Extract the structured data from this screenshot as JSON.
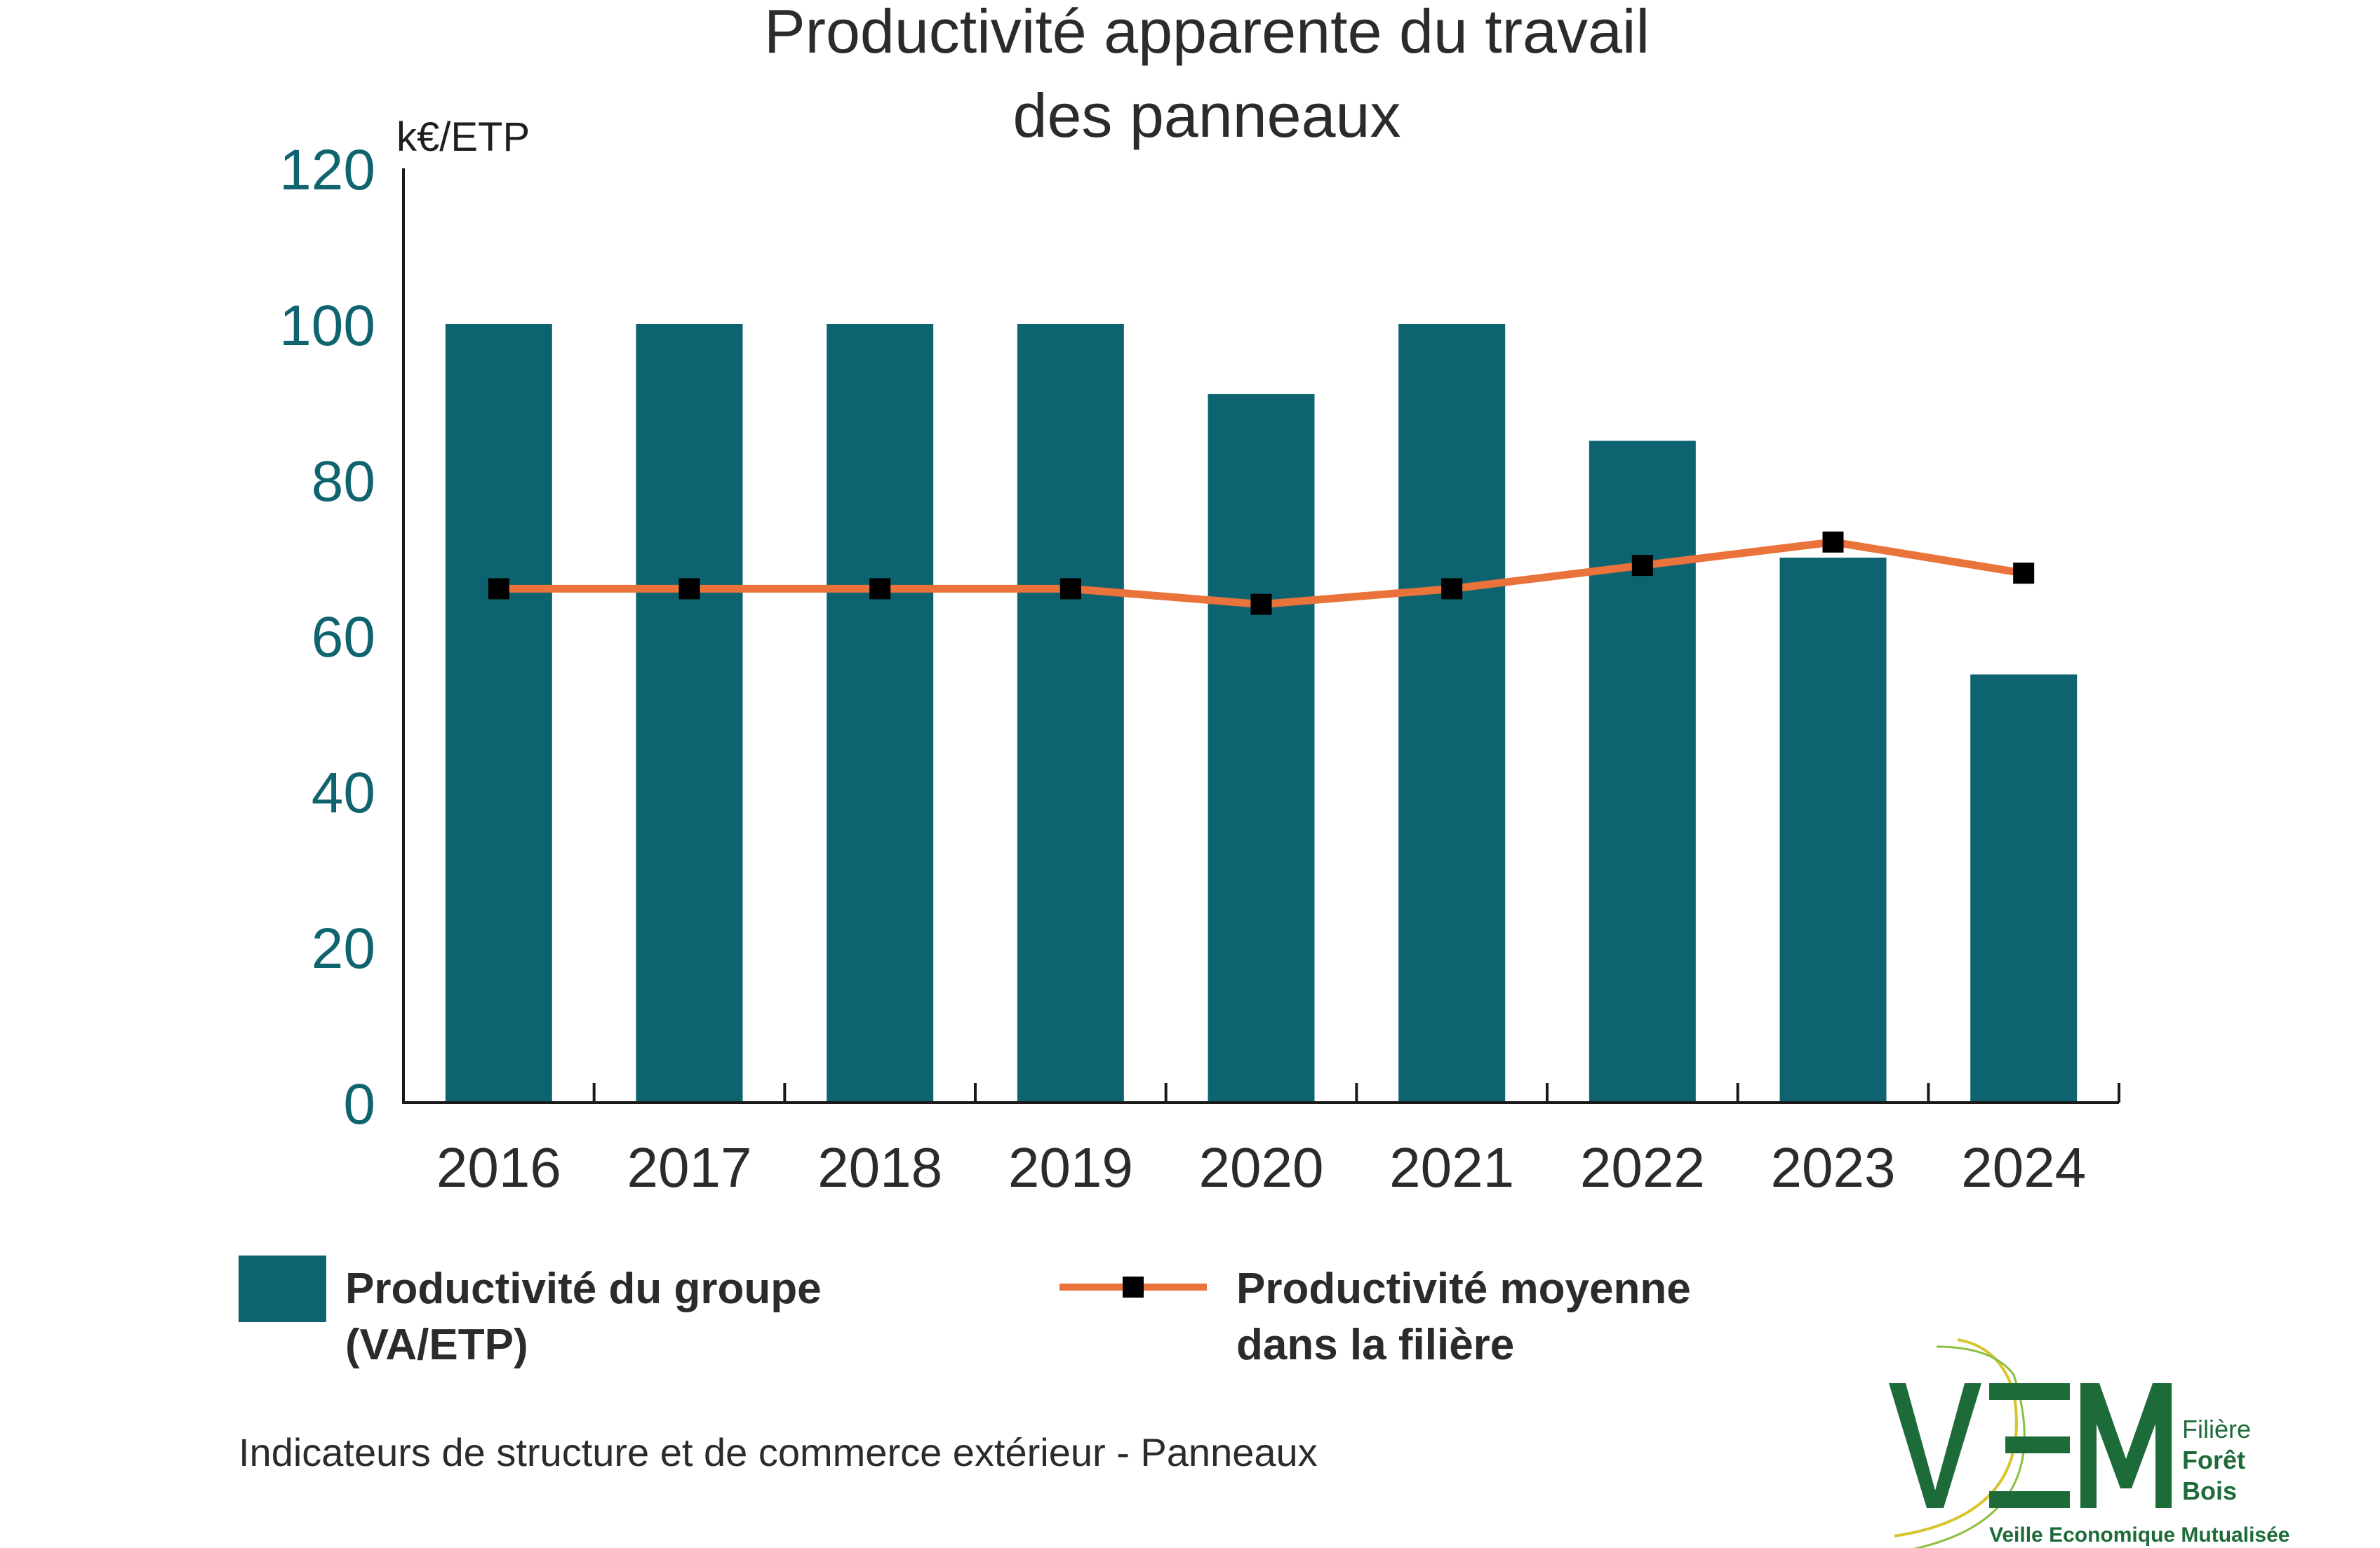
{
  "chart_data": {
    "type": "bar",
    "title_lines": [
      "Productivité apparente du travail",
      "des panneaux"
    ],
    "ylabel": "k€/ETP",
    "xlabel": "",
    "ylim": [
      0,
      120
    ],
    "yticks": [
      "0",
      "20",
      "40",
      "60",
      "80",
      "100",
      "120"
    ],
    "categories": [
      "2016",
      "2017",
      "2018",
      "2019",
      "2020",
      "2021",
      "2022",
      "2023",
      "2024"
    ],
    "series": [
      {
        "name_lines": [
          "Productivité du groupe",
          "(VA/ETP)"
        ],
        "type": "bar",
        "color": "#0d6470",
        "values": [
          100,
          100,
          100,
          100,
          91,
          100,
          85,
          70,
          55
        ]
      },
      {
        "name_lines": [
          "Productivité moyenne",
          "dans la filière"
        ],
        "type": "line",
        "color": "#e9733a",
        "marker_color": "#000000",
        "values": [
          66,
          66,
          66,
          66,
          64,
          66,
          69,
          72,
          68
        ]
      }
    ],
    "grid": false,
    "legend_position": "bottom"
  },
  "source": "Indicateurs de structure et de commerce extérieur - Panneaux",
  "logo": {
    "initials": "VEM",
    "lines": [
      "Filière",
      "Forêt",
      "Bois"
    ],
    "subtitle": "Veille Economique Mutualisée",
    "color": "#1e6b3a"
  }
}
